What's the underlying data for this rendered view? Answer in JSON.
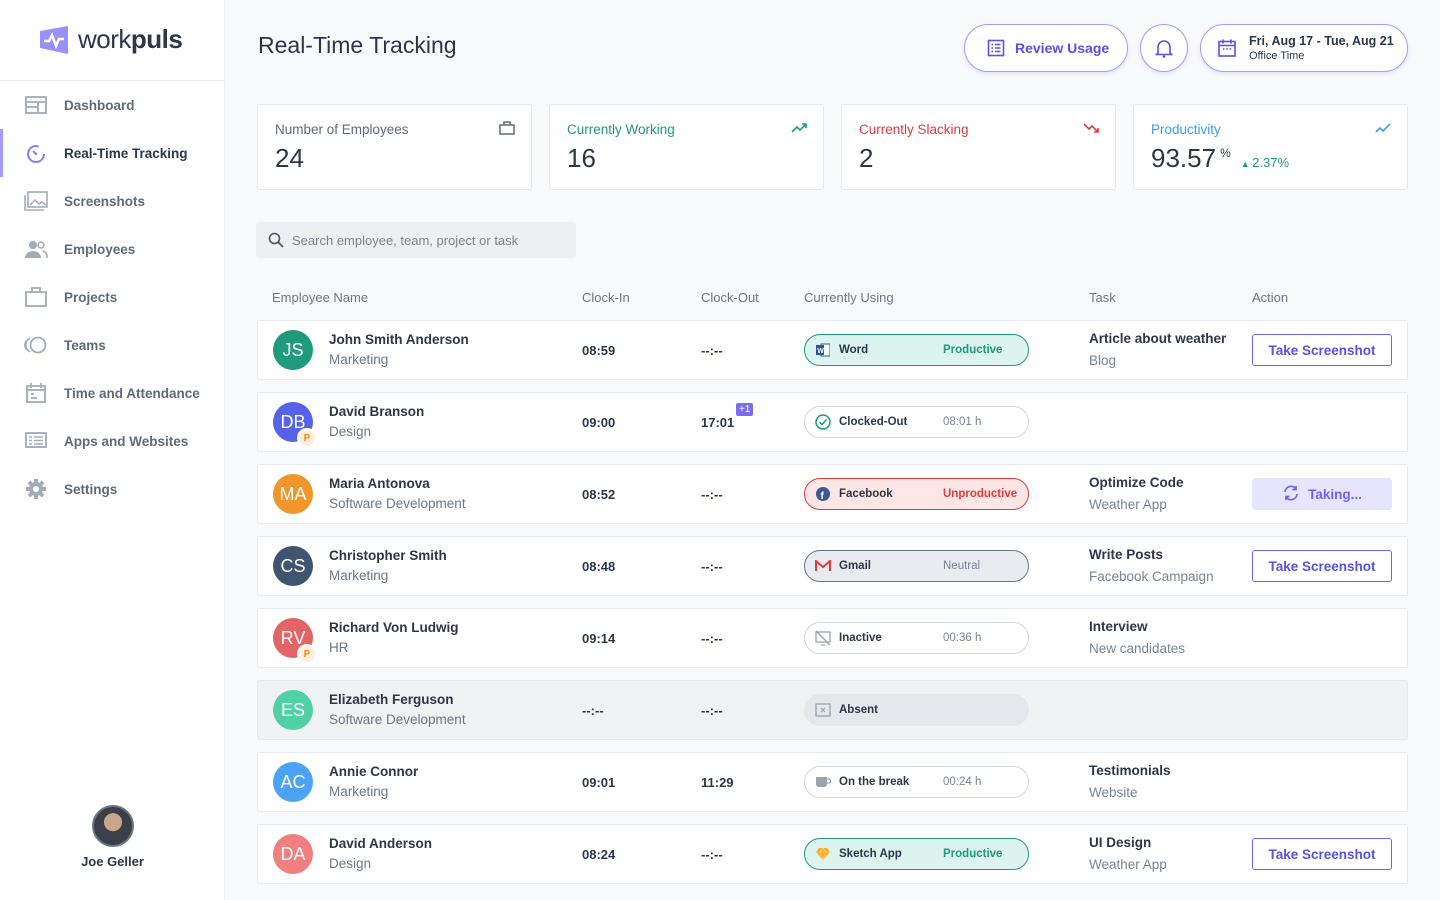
{
  "brand": {
    "name_light": "work",
    "name_bold": "puls",
    "accent": "#8a7ff7"
  },
  "sidebar": {
    "items": [
      {
        "label": "Dashboard",
        "icon": "dashboard-icon"
      },
      {
        "label": "Real-Time Tracking",
        "icon": "realtime-icon",
        "active": true
      },
      {
        "label": "Screenshots",
        "icon": "screenshots-icon"
      },
      {
        "label": "Employees",
        "icon": "employees-icon"
      },
      {
        "label": "Projects",
        "icon": "projects-icon"
      },
      {
        "label": "Teams",
        "icon": "teams-icon"
      },
      {
        "label": "Time and Attendance",
        "icon": "calendar-icon"
      },
      {
        "label": "Apps and Websites",
        "icon": "apps-icon"
      },
      {
        "label": "Settings",
        "icon": "gear-icon"
      }
    ],
    "user": "Joe Geller"
  },
  "header": {
    "title": "Real-Time Tracking",
    "review_label": "Review Usage",
    "date_range": "Fri, Aug 17 - Tue, Aug 21",
    "date_sub": "Office Time"
  },
  "stats": [
    {
      "label": "Number of Employees",
      "value": "24",
      "color": "#5f6b7d"
    },
    {
      "label": "Currently Working",
      "value": "16",
      "color": "#1f9a7a"
    },
    {
      "label": "Currently Slacking",
      "value": "2",
      "color": "#e03c3c"
    },
    {
      "label": "Productivity",
      "value": "93.57",
      "unit": "%",
      "change": "2.37%",
      "color": "#3b9cf0"
    }
  ],
  "search": {
    "placeholder": "Search employee, team, project or task"
  },
  "columns": [
    "Employee Name",
    "Clock-In",
    "Clock-Out",
    "Currently Using",
    "Task",
    "Action"
  ],
  "rows": [
    {
      "initials": "JS",
      "color": "#1f9a7a",
      "name": "John Smith Anderson",
      "dept": "Marketing",
      "in": "08:59",
      "out": "--:--",
      "app": "Word",
      "status": "Productive",
      "kind": "prod",
      "task": "Article about weather",
      "sub": "Blog",
      "action": "Take Screenshot"
    },
    {
      "initials": "DB",
      "color": "#5563e8",
      "badge": "P",
      "name": "David Branson",
      "dept": "Design",
      "in": "09:00",
      "out": "17:01",
      "plus": "+1",
      "app": "Clocked-Out",
      "status": "08:01 h",
      "kind": "clocked"
    },
    {
      "initials": "MA",
      "color": "#f0962a",
      "name": "Maria Antonova",
      "dept": "Software Development",
      "in": "08:52",
      "out": "--:--",
      "app": "Facebook",
      "status": "Unproductive",
      "kind": "unprod",
      "task": "Optimize Code",
      "sub": "Weather App",
      "action": "Taking...",
      "taking": true
    },
    {
      "initials": "CS",
      "color": "#3f5470",
      "name": "Christopher Smith",
      "dept": "Marketing",
      "in": "08:48",
      "out": "--:--",
      "app": "Gmail",
      "status": "Neutral",
      "kind": "neutral",
      "task": "Write Posts",
      "sub": "Facebook Campaign",
      "action": "Take Screenshot"
    },
    {
      "initials": "RV",
      "color": "#e26464",
      "badge": "P",
      "name": "Richard Von Ludwig",
      "dept": "HR",
      "in": "09:14",
      "out": "--:--",
      "app": "Inactive",
      "status": "00:36 h",
      "kind": "inactive",
      "task": "Interview",
      "sub": "New candidates"
    },
    {
      "initials": "ES",
      "color": "#4fd1a5",
      "name": "Elizabeth Ferguson",
      "dept": "Software Development",
      "in": "--:--",
      "out": "--:--",
      "app": "Absent",
      "status": "",
      "kind": "abs"
    },
    {
      "initials": "AC",
      "color": "#4ca3f5",
      "name": "Annie Connor",
      "dept": "Marketing",
      "in": "09:01",
      "out": "11:29",
      "app": "On the break",
      "status": "00:24 h",
      "kind": "break",
      "task": "Testimonials",
      "sub": "Website"
    },
    {
      "initials": "DA",
      "color": "#f08080",
      "name": "David Anderson",
      "dept": "Design",
      "in": "08:24",
      "out": "--:--",
      "app": "Sketch App",
      "status": "Productive",
      "kind": "prod-sketch",
      "task": "UI Design",
      "sub": "Weather App",
      "action": "Take Screenshot"
    }
  ]
}
